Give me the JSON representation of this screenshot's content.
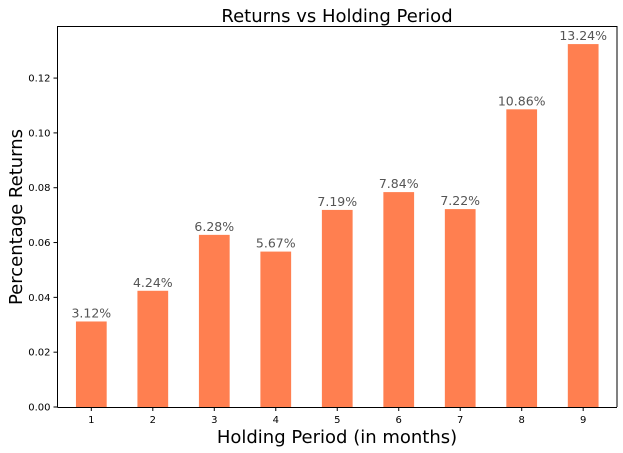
{
  "chart_data": {
    "type": "bar",
    "title": "Returns vs Holding Period",
    "xlabel": "Holding Period (in months)",
    "ylabel": "Percentage Returns",
    "categories": [
      "1",
      "2",
      "3",
      "4",
      "5",
      "6",
      "7",
      "8",
      "9"
    ],
    "values": [
      0.0312,
      0.0424,
      0.0628,
      0.0567,
      0.0719,
      0.0784,
      0.0722,
      0.1086,
      0.1324
    ],
    "data_labels": [
      "3.12%",
      "4.24%",
      "6.28%",
      "5.67%",
      "7.19%",
      "7.84%",
      "7.22%",
      "10.86%",
      "13.24%"
    ],
    "yticks": [
      "0.00",
      "0.02",
      "0.04",
      "0.06",
      "0.08",
      "0.10",
      "0.12"
    ],
    "ylim": [
      0,
      0.139
    ],
    "bar_color": "#ff7f50",
    "grid": false,
    "legend": "none"
  }
}
